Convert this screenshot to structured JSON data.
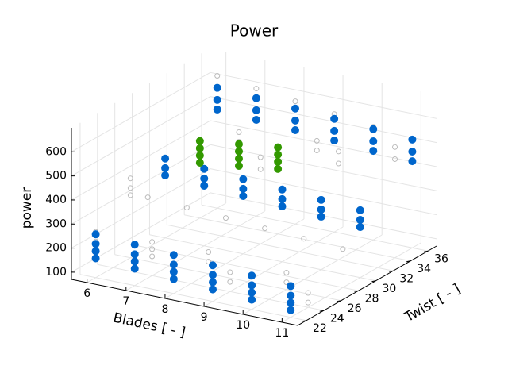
{
  "chart_data": {
    "type": "scatter3d",
    "title": "Power",
    "xlabel": "Blades [ - ]",
    "ylabel": "Twist [ - ]",
    "zlabel": "power",
    "xlim": [
      5.6,
      11.4
    ],
    "ylim": [
      21,
      37
    ],
    "zlim": [
      70,
      700
    ],
    "xticks": [
      6,
      7,
      8,
      9,
      10,
      11
    ],
    "yticks": [
      22,
      24,
      26,
      28,
      30,
      32,
      34,
      36
    ],
    "zticks": [
      100,
      200,
      300,
      400,
      500,
      600
    ],
    "grid": true,
    "series": [
      {
        "color": "#bbbbbb",
        "marker": "open",
        "x": [
          6,
          6,
          6,
          6,
          6,
          6,
          7,
          7,
          7,
          7,
          7,
          8,
          8,
          8,
          8,
          9,
          9,
          9,
          9,
          10,
          10,
          10,
          10,
          11,
          11,
          11,
          11,
          6,
          7,
          8,
          9,
          10,
          11,
          6,
          7,
          8,
          9,
          10,
          11
        ],
        "y": [
          22,
          22,
          22,
          26,
          26,
          26,
          24,
          24,
          24,
          34,
          34,
          26,
          26,
          32,
          32,
          24,
          24,
          34,
          34,
          26,
          26,
          32,
          32,
          24,
          24,
          34,
          34,
          36,
          36,
          36,
          36,
          36,
          36,
          28,
          28,
          28,
          28,
          28,
          28
        ],
        "z": [
          180,
          220,
          260,
          330,
          360,
          400,
          150,
          180,
          210,
          420,
          460,
          120,
          160,
          380,
          430,
          110,
          150,
          450,
          490,
          100,
          140,
          470,
          520,
          90,
          130,
          480,
          530,
          620,
          600,
          580,
          560,
          540,
          520,
          280,
          270,
          260,
          250,
          240,
          230
        ]
      },
      {
        "color": "#0066cc",
        "marker": "filled",
        "x": [
          6,
          6,
          6,
          6,
          7,
          7,
          7,
          7,
          8,
          8,
          8,
          8,
          9,
          9,
          9,
          9,
          10,
          10,
          10,
          10,
          11,
          11,
          11,
          11,
          6,
          6,
          6,
          7,
          7,
          7,
          8,
          8,
          8,
          9,
          9,
          9,
          10,
          10,
          10,
          11,
          11,
          11,
          6,
          6,
          6,
          7,
          7,
          7,
          8,
          8,
          8,
          9,
          9,
          9,
          10,
          10,
          10,
          11,
          11,
          11
        ],
        "y": [
          22,
          22,
          22,
          22,
          22,
          22,
          22,
          22,
          22,
          22,
          22,
          22,
          22,
          22,
          22,
          22,
          22,
          22,
          22,
          22,
          22,
          22,
          22,
          22,
          30,
          30,
          30,
          30,
          30,
          30,
          30,
          30,
          30,
          30,
          30,
          30,
          30,
          30,
          30,
          30,
          30,
          30,
          36,
          36,
          36,
          36,
          36,
          36,
          36,
          36,
          36,
          36,
          36,
          36,
          36,
          36,
          36,
          36,
          36,
          36
        ],
        "z": [
          150,
          180,
          210,
          250,
          140,
          170,
          200,
          240,
          130,
          160,
          190,
          230,
          120,
          150,
          180,
          220,
          110,
          140,
          170,
          210,
          100,
          130,
          160,
          200,
          330,
          360,
          400,
          320,
          350,
          390,
          310,
          340,
          380,
          300,
          330,
          370,
          290,
          320,
          360,
          280,
          310,
          350,
          480,
          520,
          570,
          470,
          510,
          560,
          460,
          500,
          550,
          450,
          490,
          540,
          440,
          480,
          530,
          430,
          470,
          520
        ]
      },
      {
        "color": "#339900",
        "marker": "filled",
        "x": [
          6,
          6,
          6,
          6,
          7,
          7,
          7,
          7,
          8,
          8,
          8,
          8
        ],
        "y": [
          34,
          34,
          34,
          34,
          34,
          34,
          34,
          34,
          34,
          34,
          34,
          34
        ],
        "z": [
          300,
          330,
          360,
          390,
          320,
          350,
          380,
          410,
          340,
          370,
          400,
          430
        ]
      }
    ]
  }
}
